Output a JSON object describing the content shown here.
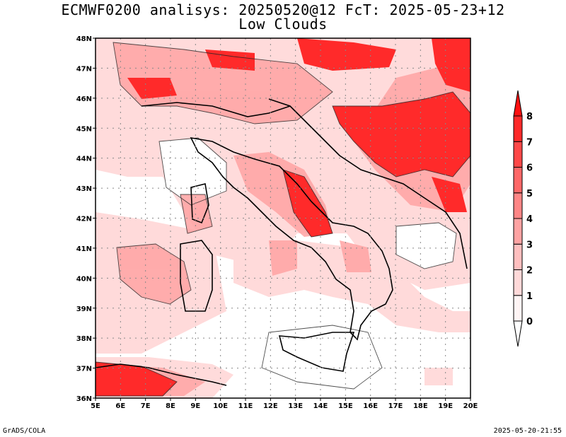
{
  "title": "ECMWF0200 analisys: 20250520@12 FcT: 2025-05-23+12",
  "subtitle": "Low Clouds",
  "footer_left": "GrADS/COLA",
  "footer_right": "2025-05-20-21:55",
  "map": {
    "lon_labels": [
      "5E",
      "6E",
      "7E",
      "8E",
      "9E",
      "10E",
      "11E",
      "12E",
      "13E",
      "14E",
      "15E",
      "16E",
      "17E",
      "18E",
      "19E",
      "20E"
    ],
    "lat_labels": [
      "48N",
      "47N",
      "46N",
      "45N",
      "44N",
      "43N",
      "42N",
      "41N",
      "40N",
      "39N",
      "38N",
      "37N",
      "36N"
    ],
    "lon_range": [
      5,
      20
    ],
    "lat_range": [
      36,
      48
    ],
    "grid": true
  },
  "colorbar": {
    "labels": [
      "0",
      "1",
      "2",
      "3",
      "4",
      "5",
      "6",
      "7",
      "8"
    ],
    "colors": [
      "#fff5f5",
      "#ffd9d9",
      "#ffbfbf",
      "#ffa3a3",
      "#ff8686",
      "#ff6868",
      "#ff4848",
      "#ff2a2a",
      "#ff1010"
    ]
  }
}
